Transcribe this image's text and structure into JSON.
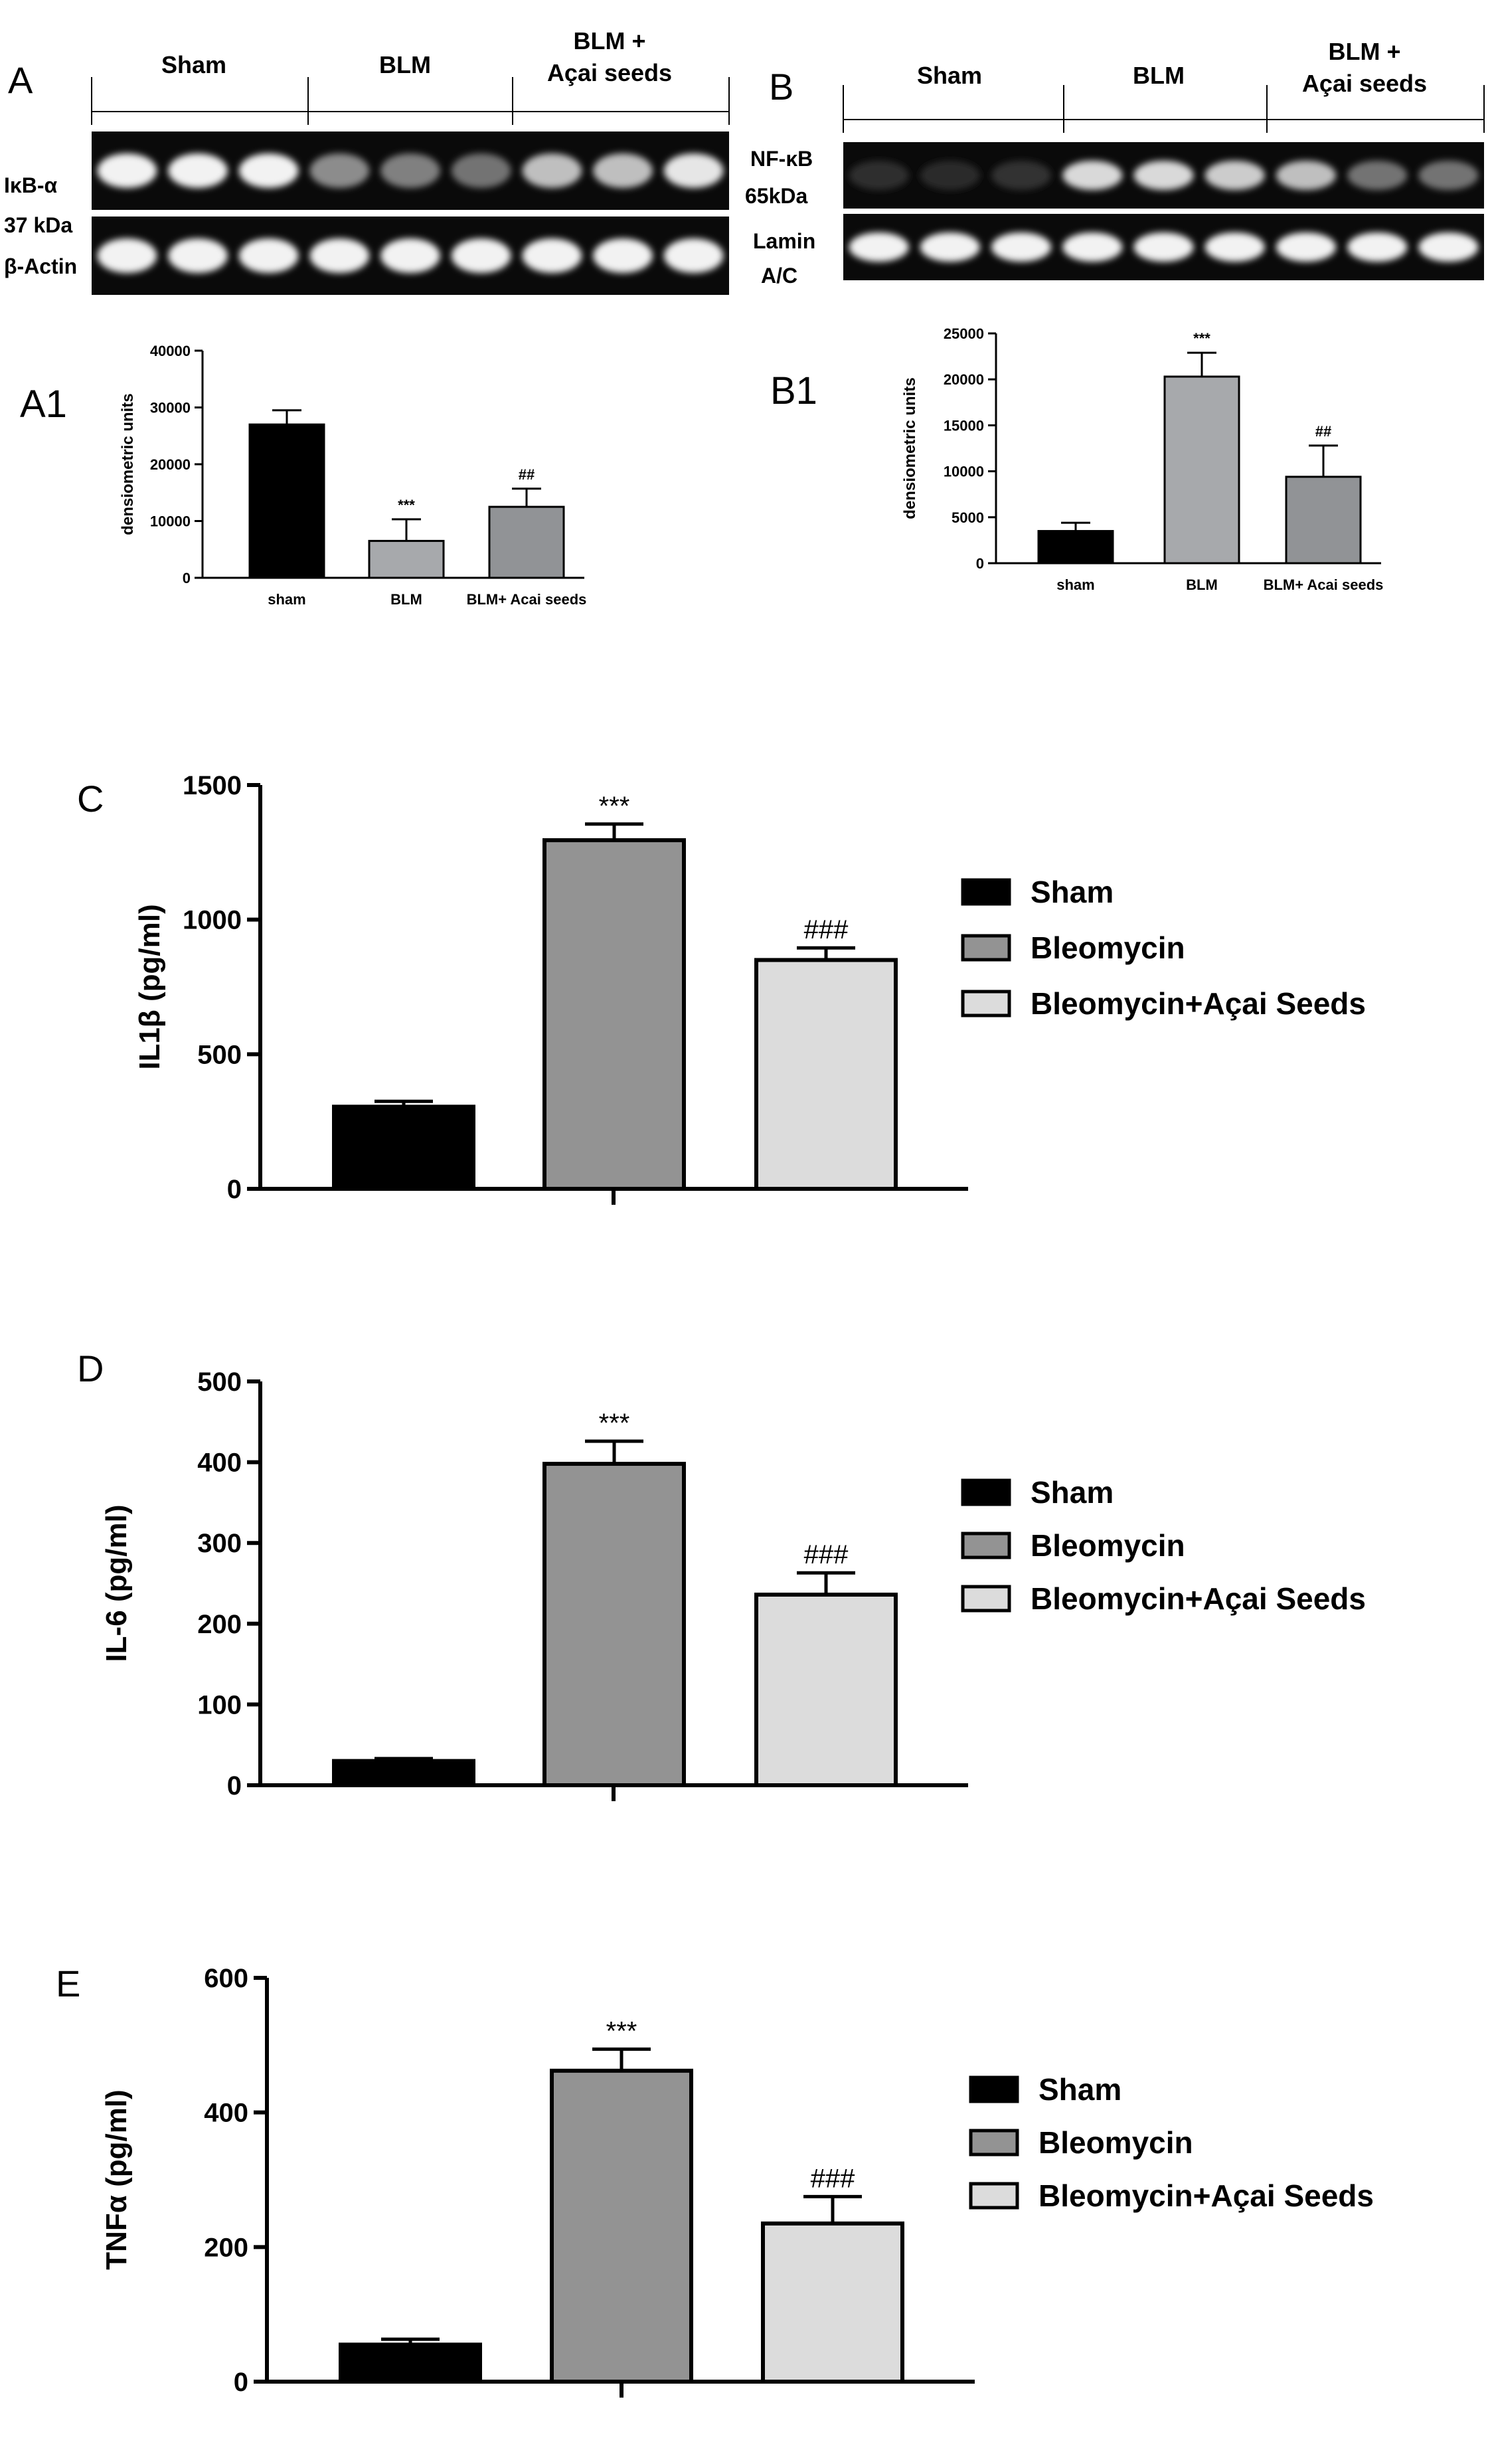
{
  "blots": {
    "A": {
      "letter": "A",
      "groups": [
        "Sham",
        "BLM",
        "BLM +",
        "Açai seeds"
      ],
      "row_labels": [
        "IκB-α",
        "37 kDa",
        "β-Actin"
      ],
      "top_intensity": [
        0.95,
        0.95,
        0.95,
        0.55,
        0.5,
        0.45,
        0.75,
        0.75,
        0.9
      ],
      "bottom_intensity": [
        0.95,
        0.95,
        0.95,
        0.95,
        0.95,
        0.95,
        0.95,
        0.95,
        0.95
      ]
    },
    "B": {
      "letter": "B",
      "groups": [
        "Sham",
        "BLM",
        "BLM +",
        "Açai seeds"
      ],
      "row_labels": [
        "NF-κB",
        "65kDa",
        "Lamin",
        "A/C"
      ],
      "top_intensity": [
        0.18,
        0.16,
        0.2,
        0.85,
        0.85,
        0.8,
        0.75,
        0.45,
        0.45
      ],
      "bottom_intensity": [
        0.95,
        0.95,
        0.95,
        0.95,
        0.95,
        0.95,
        0.95,
        0.95,
        0.95
      ]
    }
  },
  "chart_data": [
    {
      "id": "A1",
      "type": "bar",
      "panel_letter": "A1",
      "ylabel": "densiometric units",
      "categories": [
        "sham",
        "BLM",
        "BLM+ Acai seeds"
      ],
      "values": [
        27000,
        6500,
        12500
      ],
      "errors": [
        2500,
        3800,
        3200
      ],
      "annotations": [
        "",
        "***",
        "##"
      ],
      "ylim": [
        0,
        40000
      ],
      "yticks": [
        0,
        10000,
        20000,
        30000,
        40000
      ],
      "colors": [
        "#000000",
        "#a7a9ac",
        "#919396"
      ]
    },
    {
      "id": "B1",
      "type": "bar",
      "panel_letter": "B1",
      "ylabel": "densiometric units",
      "categories": [
        "sham",
        "BLM",
        "BLM+ Acai seeds"
      ],
      "values": [
        3500,
        20300,
        9400
      ],
      "errors": [
        900,
        2600,
        3400
      ],
      "annotations": [
        "",
        "***",
        "##"
      ],
      "ylim": [
        0,
        25000
      ],
      "yticks": [
        0,
        5000,
        10000,
        15000,
        20000,
        25000
      ],
      "colors": [
        "#000000",
        "#a7a9ac",
        "#919396"
      ]
    },
    {
      "id": "C",
      "type": "bar",
      "panel_letter": "C",
      "ylabel": "IL1β (pg/ml)",
      "series": [
        {
          "name": "Sham",
          "value": 305,
          "error": 20,
          "annotation": "",
          "color": "#000000"
        },
        {
          "name": "Bleomycin",
          "value": 1295,
          "error": 60,
          "annotation": "***",
          "color": "#939393"
        },
        {
          "name": "Bleomycin+Açai Seeds",
          "value": 850,
          "error": 45,
          "annotation": "###",
          "color": "#dcdcdc"
        }
      ],
      "ylim": [
        0,
        1500
      ],
      "yticks": [
        0,
        500,
        1000,
        1500
      ],
      "legend": "right"
    },
    {
      "id": "D",
      "type": "bar",
      "panel_letter": "D",
      "ylabel": "IL-6 (pg/ml)",
      "series": [
        {
          "name": "Sham",
          "value": 30,
          "error": 3,
          "annotation": "",
          "color": "#000000"
        },
        {
          "name": "Bleomycin",
          "value": 398,
          "error": 28,
          "annotation": "***",
          "color": "#939393"
        },
        {
          "name": "Bleomycin+Açai Seeds",
          "value": 236,
          "error": 27,
          "annotation": "###",
          "color": "#dcdcdc"
        }
      ],
      "ylim": [
        0,
        500
      ],
      "yticks": [
        0,
        100,
        200,
        300,
        400,
        500
      ],
      "legend": "right"
    },
    {
      "id": "E",
      "type": "bar",
      "panel_letter": "E",
      "ylabel": "TNFα (pg/ml)",
      "series": [
        {
          "name": "Sham",
          "value": 55,
          "error": 8,
          "annotation": "",
          "color": "#000000"
        },
        {
          "name": "Bleomycin",
          "value": 462,
          "error": 32,
          "annotation": "***",
          "color": "#939393"
        },
        {
          "name": "Bleomycin+Açai Seeds",
          "value": 235,
          "error": 40,
          "annotation": "###",
          "color": "#dcdcdc"
        }
      ],
      "ylim": [
        0,
        600
      ],
      "yticks": [
        0,
        200,
        400,
        600
      ],
      "legend": "right"
    }
  ]
}
